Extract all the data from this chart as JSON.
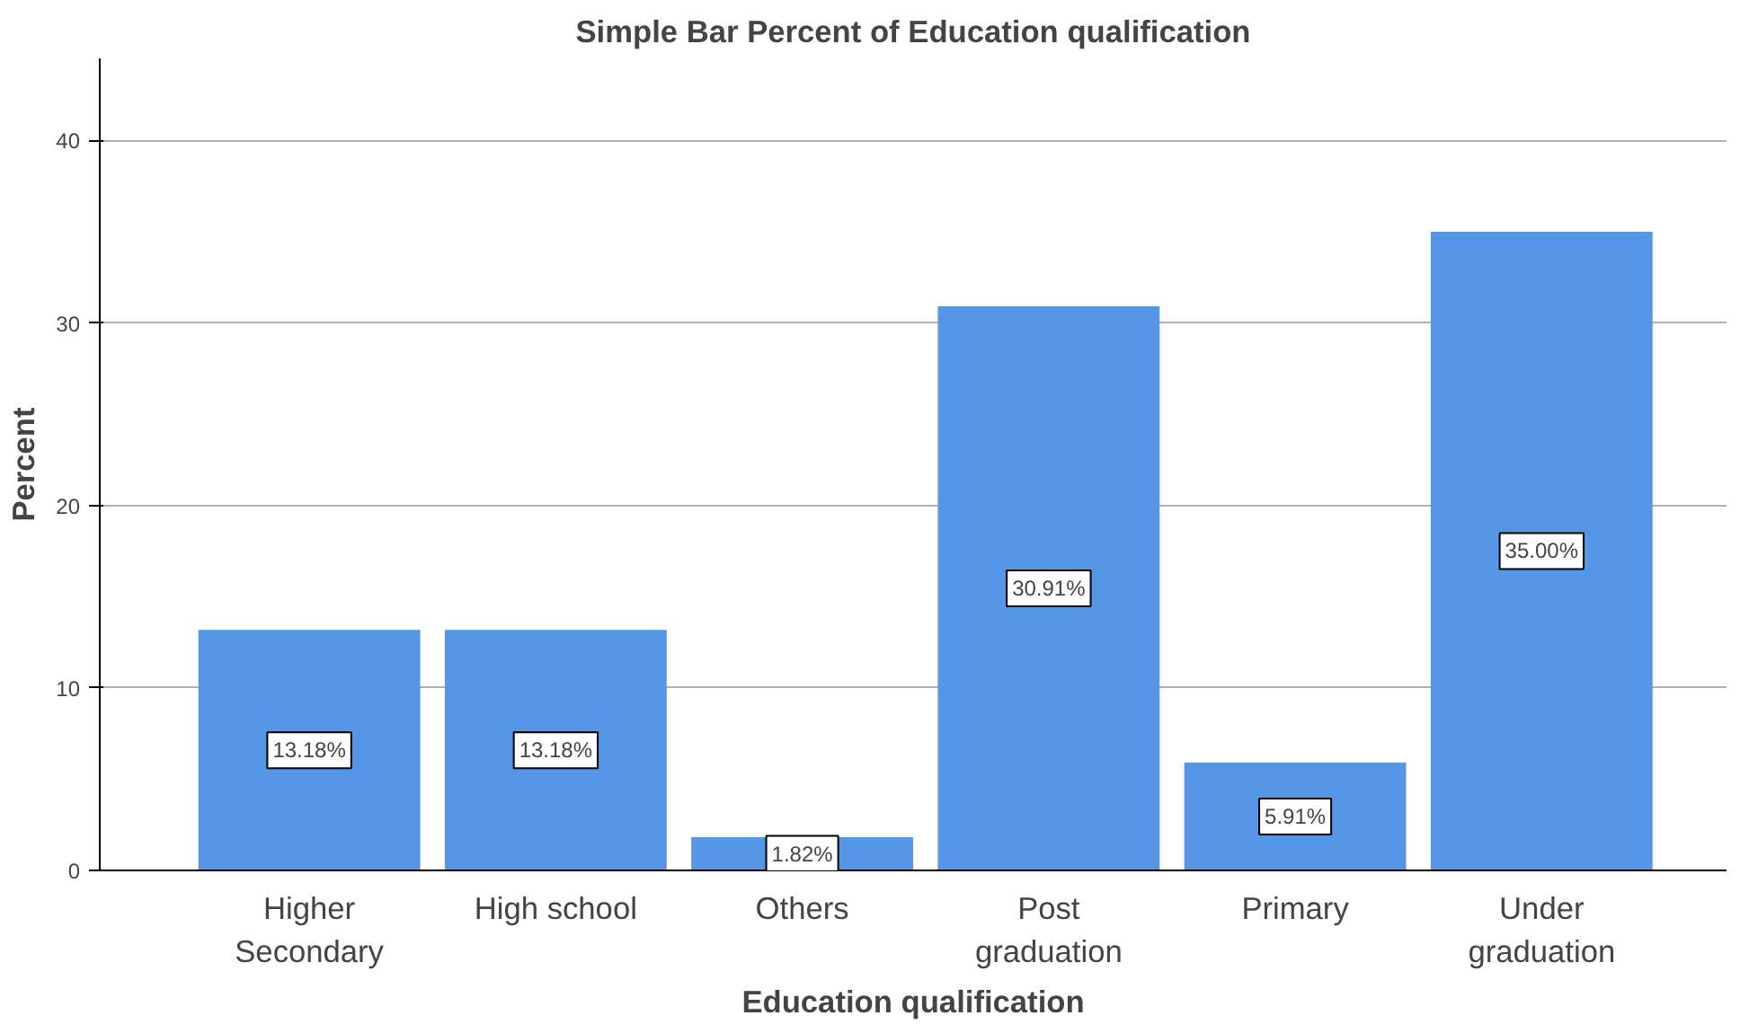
{
  "chart_data": {
    "type": "bar",
    "title": "Simple Bar Percent of Education qualification",
    "xlabel": "Education qualification",
    "ylabel": "Percent",
    "categories": [
      "Higher\nSecondary",
      "High school",
      "Others",
      "Post\ngraduation",
      "Primary",
      "Under\ngraduation"
    ],
    "values": [
      13.18,
      13.18,
      1.82,
      30.91,
      5.91,
      35.0
    ],
    "value_labels": [
      "13.18%",
      "13.18%",
      "1.82%",
      "30.91%",
      "5.91%",
      "35.00%"
    ],
    "color": "#5596e6",
    "ylim": [
      0,
      44.5
    ],
    "yticks": [
      0,
      10,
      20,
      30,
      40
    ],
    "grid": "y"
  }
}
